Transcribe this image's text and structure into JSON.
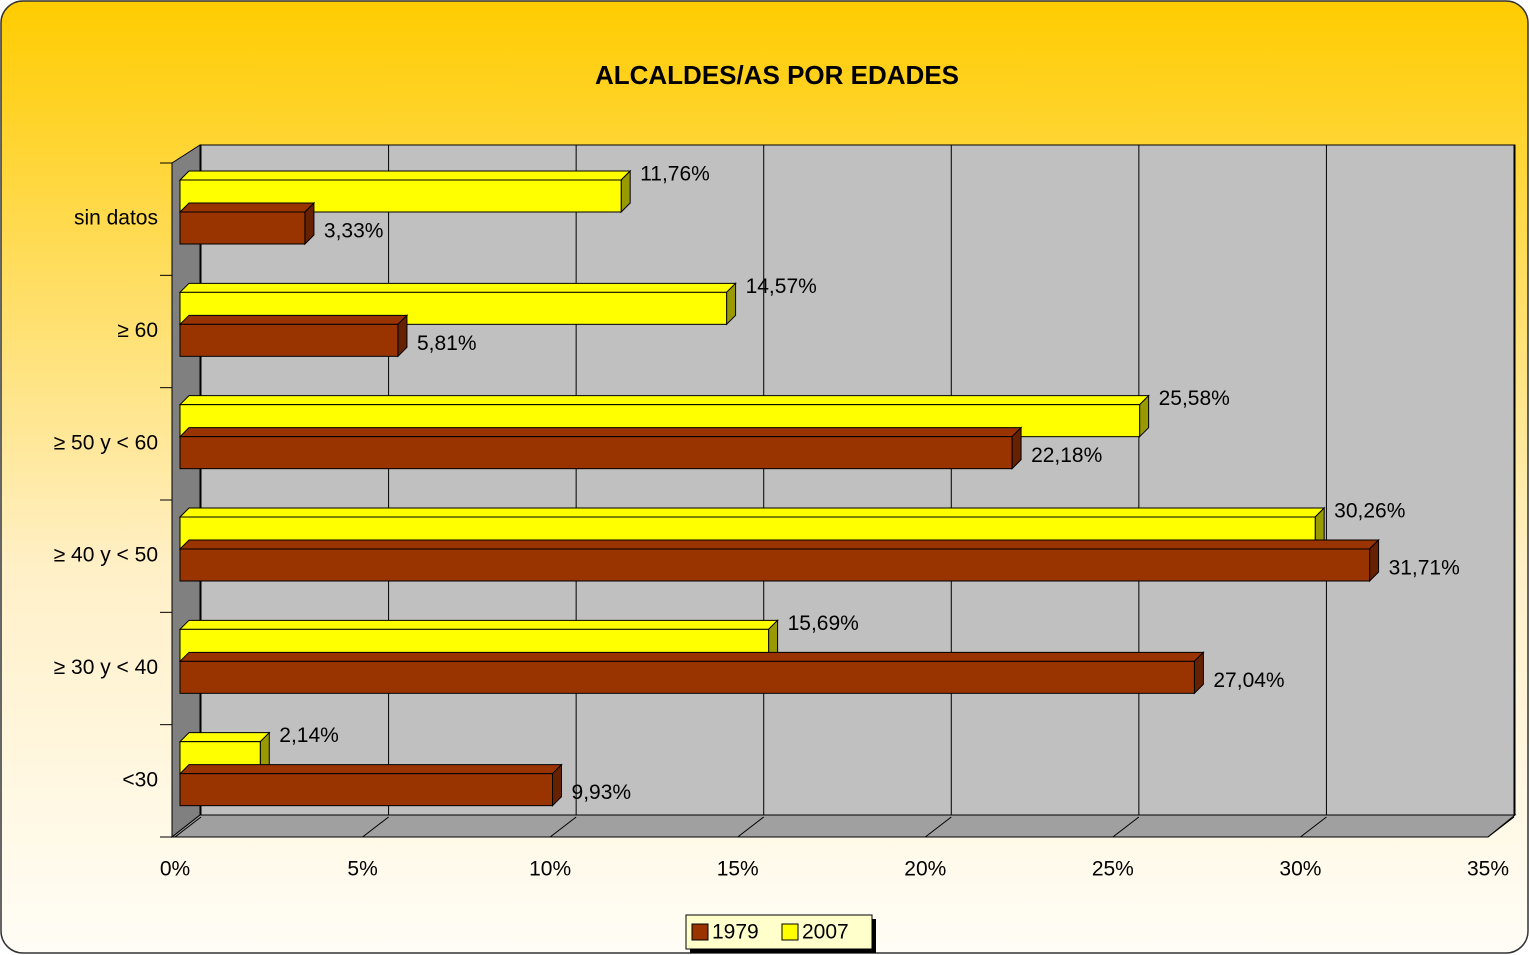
{
  "chart_data": {
    "type": "hbar3d",
    "title": "ALCALDES/AS POR EDADES",
    "categories": [
      "<30",
      "≥ 30 y < 40",
      "≥ 40 y < 50",
      "≥ 50 y < 60",
      "≥ 60",
      "sin datos"
    ],
    "series": [
      {
        "name": "1979",
        "color": "#993300",
        "side_color": "#662200",
        "values": [
          9.93,
          27.04,
          31.71,
          22.18,
          5.81,
          3.33
        ],
        "value_labels": [
          "9,93%",
          "27,04%",
          "31,71%",
          "22,18%",
          "5,81%",
          "3,33%"
        ]
      },
      {
        "name": "2007",
        "color": "#ffff00",
        "side_color": "#999900",
        "values": [
          2.14,
          15.69,
          30.26,
          25.58,
          14.57,
          11.76
        ],
        "value_labels": [
          "2,14%",
          "15,69%",
          "30,26%",
          "25,58%",
          "14,57%",
          "11,76%"
        ]
      }
    ],
    "xlim": [
      0,
      35
    ],
    "xticks": [
      {
        "value": 0,
        "label": "0%"
      },
      {
        "value": 5,
        "label": "5%"
      },
      {
        "value": 10,
        "label": "10%"
      },
      {
        "value": 15,
        "label": "15%"
      },
      {
        "value": 20,
        "label": "20%"
      },
      {
        "value": 25,
        "label": "25%"
      },
      {
        "value": 30,
        "label": "30%"
      },
      {
        "value": 35,
        "label": "35%"
      }
    ],
    "grid": true,
    "legend": "bottom"
  }
}
